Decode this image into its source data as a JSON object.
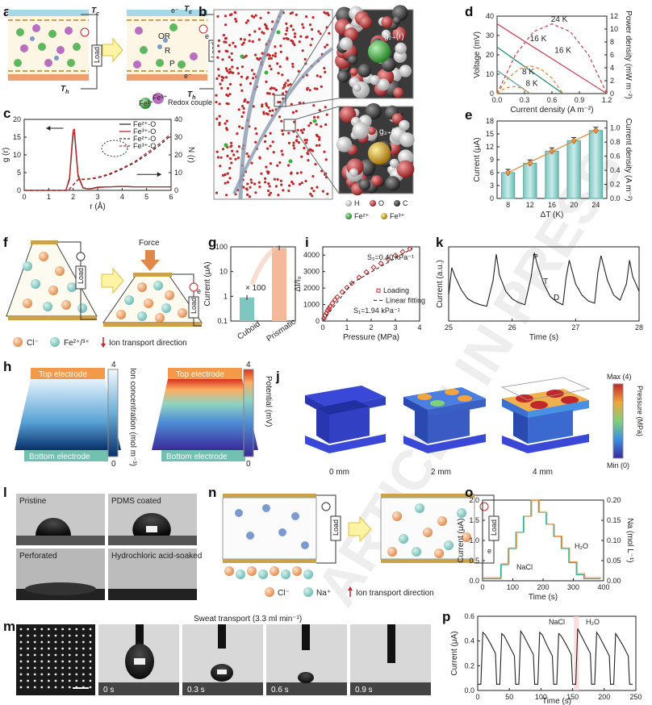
{
  "panels": {
    "a": {
      "letter": "a",
      "tc": "T",
      "tc_sub": "c",
      "th": "T",
      "th_sub": "h",
      "load": "Load",
      "electron": "e⁻",
      "e": "e",
      "or": "OR",
      "r": "R",
      "p": "P",
      "fe2": "Fe²⁺",
      "fe3": "Fe³⁺",
      "legend": "Redox couple"
    },
    "b": {
      "letter": "b",
      "g2": "g₂₊(r)",
      "g3": "g₃₊(r)",
      "legend": [
        {
          "label": "H",
          "color": "#e6e6e6"
        },
        {
          "label": "O",
          "color": "#c0282a"
        },
        {
          "label": "C",
          "color": "#8a8a8a"
        },
        {
          "label": "Fe²⁺",
          "color": "#3caf3c"
        },
        {
          "label": "Fe³⁺",
          "color": "#d89a1e"
        }
      ]
    },
    "c": {
      "letter": "c"
    },
    "d": {
      "letter": "d"
    },
    "e": {
      "letter": "e"
    },
    "f": {
      "letter": "f",
      "force": "Force",
      "load": "Load",
      "e": "e",
      "legend": [
        {
          "label": "Cl⁻"
        },
        {
          "label": "Fe²⁺/³⁺"
        },
        {
          "label": "Ion transport direction"
        }
      ]
    },
    "g": {
      "letter": "g",
      "annot": "× 100"
    },
    "h": {
      "letter": "h",
      "top": "Top electrode",
      "bottom": "Bottom electrode",
      "cb1_label": "Ion concentration (mol m⁻³)",
      "cb1_max": "4",
      "cb1_min": "0",
      "cb2_label": "Potential (mV)",
      "cb2_max": "4",
      "cb2_min": "0"
    },
    "i": {
      "letter": "i",
      "s2": "S₂=0.40 kPa⁻¹",
      "s1": "S₁=1.94 kPa⁻¹"
    },
    "j": {
      "letter": "j",
      "labels": [
        "0 mm",
        "2 mm",
        "4 mm"
      ],
      "cb_max": "Max (4)",
      "cb_min": "Min (0)",
      "cb_label": "Pressure (MPa)"
    },
    "k": {
      "letter": "k",
      "p": "P",
      "t": "T",
      "d": "D"
    },
    "l": {
      "letter": "l",
      "labels": [
        "Pristine",
        "PDMS coated",
        "Perforated",
        "Hydrochloric acid-soaked"
      ]
    },
    "m": {
      "letter": "m",
      "title": "Sweat transport (3.3 ml min⁻¹)",
      "times": [
        "0 s",
        "0.3 s",
        "0.6 s",
        "0.9 s"
      ]
    },
    "n": {
      "letter": "n",
      "load": "Load",
      "e": "e",
      "legend": [
        {
          "label": "Cl⁻"
        },
        {
          "label": "Na⁺"
        },
        {
          "label": "Ion transport direction"
        }
      ]
    },
    "o": {
      "letter": "o",
      "nacl": "NaCl",
      "h2o": "H₂O"
    },
    "p": {
      "letter": "p",
      "nacl": "NaCl",
      "h2o": "H₂O"
    }
  },
  "watermark": "ARTICLE IN PRESS",
  "chart_data": [
    {
      "id": "c",
      "type": "line",
      "xlabel": "r (Å)",
      "ylabel": "g (r)",
      "ylabel2": "N (r)",
      "xlim": [
        0,
        6
      ],
      "ylim": [
        0,
        20
      ],
      "ylim2": [
        0,
        40
      ],
      "xticks": [
        0,
        1,
        2,
        3,
        4,
        5,
        6
      ],
      "yticks": [
        0,
        5,
        10,
        15,
        20
      ],
      "yticks2": [
        0,
        10,
        20,
        30,
        40
      ],
      "legend": [
        "Fe²⁺-O",
        "Fe³⁺-O",
        "Fe²⁺-O",
        "Fe³⁺-O"
      ],
      "series": [
        {
          "name": "Fe²⁺-O",
          "axis": "left",
          "style": "solid",
          "color": "#333333",
          "x": [
            0,
            1.7,
            1.85,
            1.95,
            2.0,
            2.05,
            2.1,
            2.2,
            2.4,
            2.6,
            2.8,
            3.0,
            3.5,
            4.0,
            4.5,
            5.0,
            5.5,
            6.0
          ],
          "y": [
            0,
            0,
            3,
            12,
            16,
            16.3,
            12,
            4,
            0.7,
            0.4,
            0.6,
            0.9,
            1.0,
            1.1,
            1.0,
            1.0,
            1.0,
            1.0
          ]
        },
        {
          "name": "Fe³⁺-O",
          "axis": "left",
          "style": "solid",
          "color": "#c0282a",
          "x": [
            0,
            1.7,
            1.85,
            1.95,
            2.0,
            2.05,
            2.1,
            2.2,
            2.4,
            2.6,
            2.8,
            3.0,
            3.5,
            4.0,
            4.5,
            5.0,
            5.5,
            6.0
          ],
          "y": [
            0,
            0,
            3.5,
            13,
            17,
            17.2,
            13,
            4.5,
            0.8,
            0.4,
            0.5,
            0.8,
            1.0,
            1.1,
            1.0,
            1.0,
            1.0,
            1.0
          ]
        },
        {
          "name": "Fe²⁺-O",
          "axis": "right",
          "style": "dashed",
          "color": "#333333",
          "x": [
            0,
            1.8,
            2.0,
            2.2,
            2.6,
            3.0,
            3.5,
            4.0,
            4.5,
            5.0,
            5.5,
            6.0
          ],
          "y": [
            0,
            0,
            3,
            6,
            6.3,
            7,
            9,
            12,
            15.5,
            20,
            25,
            31
          ]
        },
        {
          "name": "Fe³⁺-O",
          "axis": "right",
          "style": "dashed",
          "color": "#c0282a",
          "x": [
            0,
            1.8,
            2.0,
            2.2,
            2.6,
            3.0,
            3.5,
            4.0,
            4.5,
            5.0,
            5.5,
            6.0
          ],
          "y": [
            0,
            0,
            3.2,
            6.2,
            6.5,
            7.3,
            9.5,
            12.5,
            16,
            21,
            26,
            32
          ]
        }
      ]
    },
    {
      "id": "d",
      "type": "line",
      "xlabel": "Current density (A m⁻²)",
      "ylabel": "Voltage (mV)",
      "ylabel2": "Power density (mW m⁻²)",
      "xlim": [
        0,
        1.2
      ],
      "ylim": [
        0,
        40
      ],
      "ylim2": [
        0,
        12
      ],
      "xticks": [
        0.0,
        0.3,
        0.6,
        0.9,
        1.2
      ],
      "yticks": [
        0,
        10,
        20,
        30,
        40
      ],
      "yticks2": [
        0,
        2,
        4,
        6,
        8,
        10,
        12
      ],
      "series": [
        {
          "name": "24 K",
          "axis": "left",
          "style": "solid",
          "color": "#c94a5a",
          "x": [
            0,
            1.2
          ],
          "y": [
            36,
            0
          ]
        },
        {
          "name": "16 K",
          "axis": "left",
          "style": "solid",
          "color": "#2e8b6e",
          "x": [
            0,
            0.72
          ],
          "y": [
            24,
            0
          ]
        },
        {
          "name": "8 K",
          "axis": "left",
          "style": "solid",
          "color": "#5aa0b0",
          "x": [
            0,
            0.36
          ],
          "y": [
            12,
            0
          ]
        },
        {
          "name": "24 K",
          "axis": "right",
          "style": "dashed",
          "color": "#c94a5a",
          "x": [
            0,
            0.2,
            0.4,
            0.6,
            0.8,
            1.0,
            1.2
          ],
          "y": [
            0,
            6,
            9.6,
            10.8,
            9.6,
            6,
            0
          ]
        },
        {
          "name": "16 K",
          "axis": "right",
          "style": "dashed",
          "color": "#e08a3c",
          "x": [
            0,
            0.12,
            0.24,
            0.36,
            0.48,
            0.6,
            0.72
          ],
          "y": [
            0,
            2.4,
            3.8,
            4.3,
            3.8,
            2.4,
            0
          ]
        },
        {
          "name": "8 K",
          "axis": "right",
          "style": "dashed",
          "color": "#e08a3c",
          "x": [
            0,
            0.06,
            0.12,
            0.18,
            0.24,
            0.3,
            0.36
          ],
          "y": [
            0,
            0.6,
            0.96,
            1.08,
            0.96,
            0.6,
            0
          ]
        }
      ],
      "annotations": [
        "24 K",
        "16 K",
        "16 K",
        "8 K",
        "8 K"
      ]
    },
    {
      "id": "e",
      "type": "bar",
      "xlabel": "ΔT (K)",
      "ylabel": "Current (μA)",
      "ylabel2": "Current density (A m⁻²)",
      "categories": [
        "8",
        "12",
        "16",
        "20",
        "24"
      ],
      "values": [
        6.0,
        8.2,
        11.0,
        13.4,
        15.8
      ],
      "ylim": [
        0,
        18
      ],
      "ylim2": [
        0,
        1.1
      ],
      "yticks": [
        0,
        3,
        6,
        9,
        12,
        15,
        18
      ],
      "yticks2": [
        0.0,
        0.2,
        0.4,
        0.6,
        0.8,
        1.0
      ],
      "fit": {
        "x": [
          "8",
          "24"
        ],
        "y": [
          6.0,
          15.8
        ]
      }
    },
    {
      "id": "g",
      "type": "bar",
      "xlabel": "",
      "ylabel": "Current (μA)",
      "scale": "log",
      "categories": [
        "Cuboid",
        "Prismatic"
      ],
      "values": [
        0.9,
        90
      ],
      "ylim": [
        0.1,
        100
      ],
      "yticks": [
        "0.1",
        "1",
        "10",
        "100"
      ]
    },
    {
      "id": "i",
      "type": "scatter",
      "xlabel": "Pressure (MPa)",
      "ylabel": "ΔI/I₀",
      "xlim": [
        0,
        4
      ],
      "ylim": [
        0,
        4500
      ],
      "xticks": [
        0,
        1,
        2,
        3,
        4
      ],
      "yticks": [
        0,
        1000,
        2000,
        3000,
        4000
      ],
      "legend": [
        "Loading",
        "Linear fitting"
      ],
      "x": [
        0.05,
        0.1,
        0.15,
        0.2,
        0.25,
        0.3,
        0.4,
        0.5,
        0.6,
        0.8,
        1.0,
        1.2,
        1.5,
        1.8,
        2.1,
        2.4,
        2.7,
        3.0,
        3.3,
        3.6
      ],
      "y": [
        150,
        320,
        480,
        640,
        760,
        880,
        1080,
        1290,
        1460,
        1760,
        2030,
        2290,
        2650,
        2970,
        3250,
        3500,
        3750,
        3980,
        4200,
        4380
      ]
    },
    {
      "id": "k",
      "type": "line",
      "xlabel": "Time (s)",
      "ylabel": "Current (a.u.)",
      "xlim": [
        25,
        28
      ],
      "xticks": [
        25,
        26,
        27,
        28
      ],
      "x": [
        25.0,
        25.05,
        25.1,
        25.2,
        25.3,
        25.4,
        25.5,
        25.6,
        25.7,
        25.75,
        25.8,
        25.9,
        26.0,
        26.1,
        26.2,
        26.3,
        26.35,
        26.4,
        26.5,
        26.6,
        26.7,
        26.8,
        26.85,
        26.9,
        27.0,
        27.1,
        27.2,
        27.3,
        27.35,
        27.4,
        27.5,
        27.6,
        27.7,
        27.8,
        27.85,
        27.9,
        28.0
      ],
      "y": [
        0.35,
        0.72,
        0.6,
        0.42,
        0.3,
        0.25,
        0.22,
        0.2,
        0.55,
        0.9,
        0.62,
        0.4,
        0.3,
        0.25,
        0.22,
        0.6,
        0.92,
        0.75,
        0.5,
        0.33,
        0.26,
        0.22,
        0.58,
        0.82,
        0.5,
        0.35,
        0.27,
        0.24,
        0.65,
        0.88,
        0.55,
        0.35,
        0.28,
        0.5,
        0.82,
        0.6,
        0.4
      ]
    },
    {
      "id": "o",
      "type": "line",
      "xlabel": "Time (s)",
      "ylabel": "Current (μA)",
      "ylabel2": "Na (mol L⁻¹)",
      "xlim": [
        0,
        400
      ],
      "ylim": [
        0,
        2.0
      ],
      "ylim2": [
        0,
        0.2
      ],
      "xticks": [
        0,
        100,
        200,
        300,
        400
      ],
      "yticks": [
        0.0,
        0.5,
        1.0,
        1.5,
        2.0
      ],
      "yticks2": [
        0.0,
        0.05,
        0.1,
        0.15,
        0.2
      ],
      "x": [
        0,
        60,
        60,
        85,
        85,
        110,
        110,
        135,
        135,
        160,
        160,
        185,
        185,
        210,
        210,
        235,
        235,
        260,
        260,
        285,
        285,
        310,
        310,
        335,
        335,
        390
      ],
      "y": [
        0.05,
        0.05,
        0.4,
        0.4,
        0.8,
        0.8,
        1.2,
        1.2,
        1.6,
        1.6,
        2.0,
        2.0,
        1.7,
        1.7,
        1.4,
        1.4,
        1.1,
        1.1,
        0.8,
        0.8,
        0.45,
        0.45,
        0.15,
        0.15,
        0.05,
        0.05
      ]
    },
    {
      "id": "p",
      "type": "line",
      "xlabel": "Time (s)",
      "ylabel": "Current (μA)",
      "xlim": [
        0,
        250
      ],
      "ylim": [
        0,
        0.6
      ],
      "xticks": [
        0,
        50,
        100,
        150,
        200,
        250
      ],
      "yticks": [
        0.0,
        0.2,
        0.4,
        0.6
      ],
      "x": [
        0,
        5,
        8,
        12,
        20,
        28,
        30,
        35,
        38,
        42,
        50,
        58,
        60,
        65,
        68,
        72,
        80,
        88,
        90,
        95,
        98,
        102,
        110,
        118,
        120,
        125,
        128,
        132,
        140,
        148,
        150,
        155,
        158,
        162,
        170,
        178,
        180,
        185,
        188,
        192,
        200,
        208,
        210,
        215,
        218,
        222,
        230,
        238,
        240,
        245
      ],
      "y": [
        0.05,
        0.05,
        0.47,
        0.45,
        0.38,
        0.3,
        0.05,
        0.05,
        0.46,
        0.44,
        0.36,
        0.28,
        0.05,
        0.05,
        0.48,
        0.45,
        0.37,
        0.29,
        0.05,
        0.05,
        0.47,
        0.45,
        0.36,
        0.28,
        0.05,
        0.05,
        0.46,
        0.44,
        0.37,
        0.29,
        0.05,
        0.05,
        0.5,
        0.46,
        0.38,
        0.3,
        0.05,
        0.05,
        0.47,
        0.44,
        0.36,
        0.28,
        0.05,
        0.05,
        0.46,
        0.43,
        0.36,
        0.28,
        0.05,
        0.05
      ]
    }
  ]
}
